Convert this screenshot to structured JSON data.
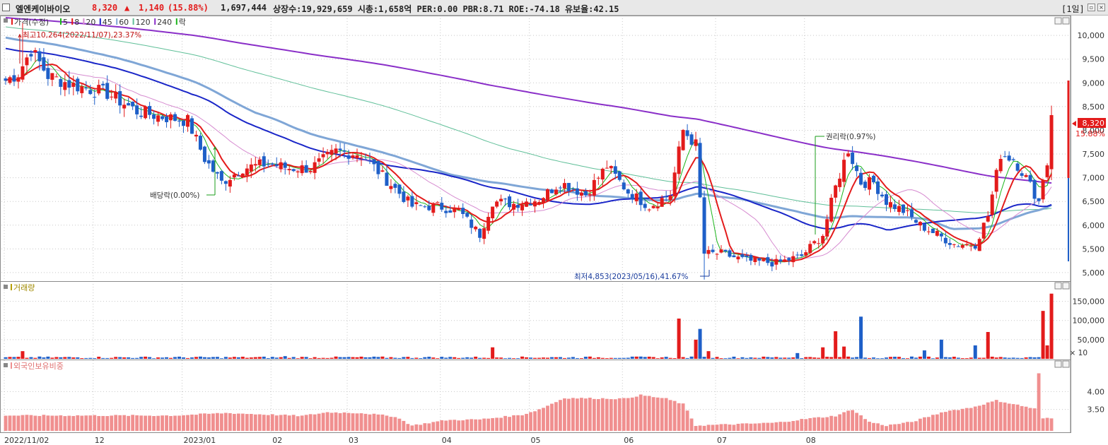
{
  "header": {
    "name": "엘엔케이바이오",
    "price": "8,320",
    "change_arrow": "▲",
    "change": "1,140",
    "change_pct": "(15.88%)",
    "volume": "1,697,444",
    "stats": "상장수:19,929,659 시총:1,658억 PER:0.00 PBR:8.71 ROE:-74.18 유보율:42.15",
    "period": "[1일]"
  },
  "colors": {
    "up": "#e31b1b",
    "down": "#1e5fc8",
    "ma5": "#1bb51b",
    "ma8": "#e31b1b",
    "ma20": "#d68bd0",
    "ma45": "#1a26c8",
    "ma60": "#7fa6d6",
    "ma120": "#5fbf98",
    "ma240": "#8a2fc8",
    "foreign_bar": "#f08f8f",
    "grid": "#c8c8c8"
  },
  "price_panel": {
    "legend": [
      {
        "label": "가격(수정)",
        "color": "#e31b1b"
      },
      {
        "label": "5",
        "color": "#1bb51b"
      },
      {
        "label": "8",
        "color": "#e31b1b"
      },
      {
        "label": "20",
        "color": "#d68bd0"
      },
      {
        "label": "45",
        "color": "#1a26c8"
      },
      {
        "label": "60",
        "color": "#7fa6d6"
      },
      {
        "label": "120",
        "color": "#5fbf98"
      },
      {
        "label": "240",
        "color": "#8a2fc8"
      },
      {
        "label": "락",
        "color": "#1bb51b"
      }
    ],
    "annotations": {
      "high": "최고10,264(2022/11/07),23.37%",
      "low": "최저4,853(2023/05/16),41.67%",
      "dividend": "배당락(0.00%)",
      "rights": "권리락(0.97%)"
    },
    "current_label": "8,320",
    "current_pct": "15.88%"
  },
  "volume_panel": {
    "title": "거래량",
    "multiplier": "× 10"
  },
  "foreign_panel": {
    "title": "외국인보유비중"
  },
  "chart_data": [
    {
      "type": "candlestick",
      "title": "",
      "ylim": [
        4850,
        10300
      ],
      "yticks": [
        "10,000",
        "9,500",
        "9,000",
        "8,500",
        "8,000",
        "7,500",
        "7,000",
        "6,500",
        "6,000",
        "5,500",
        "5,000"
      ],
      "x_tick_labels": [
        "2022/11/02",
        "12",
        "2023/01",
        "02",
        "03",
        "04",
        "05",
        "06",
        "07",
        "08"
      ],
      "grid": true,
      "high": 10264,
      "low": 4853,
      "last_close": 8320,
      "anchors": [
        {
          "i": 0,
          "p": 9050
        },
        {
          "i": 3,
          "p": 9200
        },
        {
          "i": 6,
          "p": 9700
        },
        {
          "i": 10,
          "p": 9150
        },
        {
          "i": 16,
          "p": 8950
        },
        {
          "i": 24,
          "p": 8780
        },
        {
          "i": 31,
          "p": 8400
        },
        {
          "i": 36,
          "p": 8300
        },
        {
          "i": 43,
          "p": 8200
        },
        {
          "i": 47,
          "p": 7400
        },
        {
          "i": 51,
          "p": 6900
        },
        {
          "i": 56,
          "p": 7200
        },
        {
          "i": 62,
          "p": 7300
        },
        {
          "i": 67,
          "p": 7200
        },
        {
          "i": 72,
          "p": 7200
        },
        {
          "i": 78,
          "p": 7550
        },
        {
          "i": 84,
          "p": 7500
        },
        {
          "i": 90,
          "p": 6950
        },
        {
          "i": 96,
          "p": 6400
        },
        {
          "i": 102,
          "p": 6400
        },
        {
          "i": 107,
          "p": 6300
        },
        {
          "i": 112,
          "p": 5800
        },
        {
          "i": 115,
          "p": 6500
        },
        {
          "i": 120,
          "p": 6450
        },
        {
          "i": 126,
          "p": 6550
        },
        {
          "i": 131,
          "p": 6900
        },
        {
          "i": 137,
          "p": 6650
        },
        {
          "i": 142,
          "p": 7250
        },
        {
          "i": 147,
          "p": 6700
        },
        {
          "i": 152,
          "p": 6400
        },
        {
          "i": 157,
          "p": 6650
        },
        {
          "i": 160,
          "p": 8000
        },
        {
          "i": 163,
          "p": 7700
        },
        {
          "i": 165,
          "p": 5400
        },
        {
          "i": 169,
          "p": 5400
        },
        {
          "i": 175,
          "p": 5250
        },
        {
          "i": 182,
          "p": 5200
        },
        {
          "i": 188,
          "p": 5350
        },
        {
          "i": 193,
          "p": 5800
        },
        {
          "i": 196,
          "p": 6800
        },
        {
          "i": 199,
          "p": 7600
        },
        {
          "i": 202,
          "p": 6900
        },
        {
          "i": 205,
          "p": 6900
        },
        {
          "i": 208,
          "p": 6500
        },
        {
          "i": 212,
          "p": 6300
        },
        {
          "i": 216,
          "p": 6000
        },
        {
          "i": 220,
          "p": 5800
        },
        {
          "i": 224,
          "p": 5600
        },
        {
          "i": 229,
          "p": 5600
        },
        {
          "i": 232,
          "p": 6200
        },
        {
          "i": 235,
          "p": 7500
        },
        {
          "i": 238,
          "p": 7400
        },
        {
          "i": 241,
          "p": 7000
        },
        {
          "i": 244,
          "p": 6500
        },
        {
          "i": 245,
          "p": 7000
        },
        {
          "i": 246,
          "p": 7300
        },
        {
          "i": 247,
          "p": 8320
        }
      ]
    },
    {
      "type": "bar",
      "title": "거래량",
      "ylim": [
        0,
        175000
      ],
      "yticks": [
        "150,000",
        "100,000",
        "50,000"
      ],
      "spikes": [
        {
          "i": 4,
          "v": 20000
        },
        {
          "i": 66,
          "v": 7000
        },
        {
          "i": 115,
          "v": 30000
        },
        {
          "i": 159,
          "v": 105000
        },
        {
          "i": 163,
          "v": 50000
        },
        {
          "i": 164,
          "v": 78000
        },
        {
          "i": 166,
          "v": 20000
        },
        {
          "i": 187,
          "v": 15000
        },
        {
          "i": 193,
          "v": 30000
        },
        {
          "i": 196,
          "v": 72000
        },
        {
          "i": 198,
          "v": 32000
        },
        {
          "i": 202,
          "v": 110000
        },
        {
          "i": 217,
          "v": 22000
        },
        {
          "i": 221,
          "v": 50000
        },
        {
          "i": 229,
          "v": 35000
        },
        {
          "i": 232,
          "v": 70000
        },
        {
          "i": 245,
          "v": 125000
        },
        {
          "i": 246,
          "v": 35000
        },
        {
          "i": 247,
          "v": 170000
        }
      ]
    },
    {
      "type": "bar",
      "title": "외국인보유비중",
      "ylim": [
        2.9,
        4.6
      ],
      "yticks": [
        "4.00",
        "3.50"
      ],
      "anchors": [
        {
          "i": 0,
          "v": 3.33
        },
        {
          "i": 40,
          "v": 3.33
        },
        {
          "i": 52,
          "v": 3.4
        },
        {
          "i": 70,
          "v": 3.32
        },
        {
          "i": 76,
          "v": 3.42
        },
        {
          "i": 84,
          "v": 3.4
        },
        {
          "i": 92,
          "v": 3.3
        },
        {
          "i": 96,
          "v": 3.05
        },
        {
          "i": 104,
          "v": 3.2
        },
        {
          "i": 112,
          "v": 3.22
        },
        {
          "i": 122,
          "v": 3.35
        },
        {
          "i": 126,
          "v": 3.5
        },
        {
          "i": 132,
          "v": 3.82
        },
        {
          "i": 146,
          "v": 3.8
        },
        {
          "i": 150,
          "v": 3.9
        },
        {
          "i": 156,
          "v": 3.8
        },
        {
          "i": 160,
          "v": 3.65
        },
        {
          "i": 163,
          "v": 3.05
        },
        {
          "i": 168,
          "v": 3.07
        },
        {
          "i": 176,
          "v": 3.1
        },
        {
          "i": 182,
          "v": 3.13
        },
        {
          "i": 190,
          "v": 3.25
        },
        {
          "i": 196,
          "v": 3.32
        },
        {
          "i": 200,
          "v": 3.5
        },
        {
          "i": 204,
          "v": 3.15
        },
        {
          "i": 208,
          "v": 3.05
        },
        {
          "i": 214,
          "v": 3.15
        },
        {
          "i": 222,
          "v": 3.45
        },
        {
          "i": 228,
          "v": 3.55
        },
        {
          "i": 234,
          "v": 3.75
        },
        {
          "i": 240,
          "v": 3.6
        },
        {
          "i": 243,
          "v": 3.52
        },
        {
          "i": 244,
          "v": 4.5
        },
        {
          "i": 245,
          "v": 3.25
        },
        {
          "i": 247,
          "v": 3.25
        }
      ]
    }
  ]
}
